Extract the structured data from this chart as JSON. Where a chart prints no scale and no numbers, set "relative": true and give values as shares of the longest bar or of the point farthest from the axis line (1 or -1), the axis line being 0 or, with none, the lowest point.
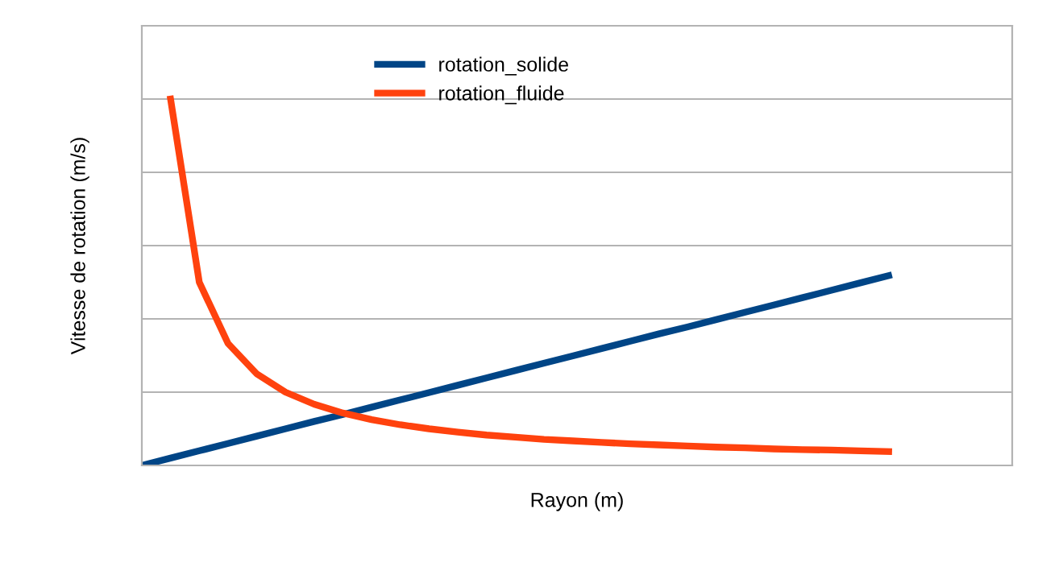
{
  "chart_data": {
    "type": "line",
    "relative": true,
    "xlabel": "Rayon (m)",
    "ylabel": "Vitesse de rotation (m/s)",
    "categories": [
      null,
      null,
      null,
      null,
      null,
      null,
      null,
      null,
      null,
      null,
      null,
      null,
      null,
      null,
      null,
      null,
      null,
      null,
      null,
      null,
      null,
      null,
      null,
      null,
      null,
      null,
      null,
      null,
      null,
      null,
      null
    ],
    "series": [
      {
        "name": "rotation_solide",
        "color": "#004586",
        "values": [
          0,
          0.02,
          0.04,
          0.06,
          0.08,
          0.1,
          0.12,
          0.139,
          0.159,
          0.179,
          0.199,
          0.219,
          0.239,
          0.259,
          0.279,
          0.299,
          0.319,
          0.339,
          0.359,
          0.378,
          0.398,
          0.418,
          0.438,
          0.458,
          0.478,
          0.498,
          0.518,
          null,
          null,
          null,
          null
        ]
      },
      {
        "name": "rotation_fluide",
        "color": "#ff420e",
        "values": [
          null,
          1,
          0.5,
          0.333,
          0.25,
          0.2,
          0.167,
          0.143,
          0.125,
          0.111,
          0.1,
          0.091,
          0.083,
          0.077,
          0.071,
          0.067,
          0.063,
          0.059,
          0.056,
          0.053,
          0.05,
          0.048,
          0.045,
          0.043,
          0.042,
          0.04,
          0.038,
          null,
          null,
          null,
          null
        ]
      }
    ],
    "grid": "y",
    "legend": "top",
    "tick_labels": false,
    "marker": "none",
    "line_style": "solid"
  }
}
